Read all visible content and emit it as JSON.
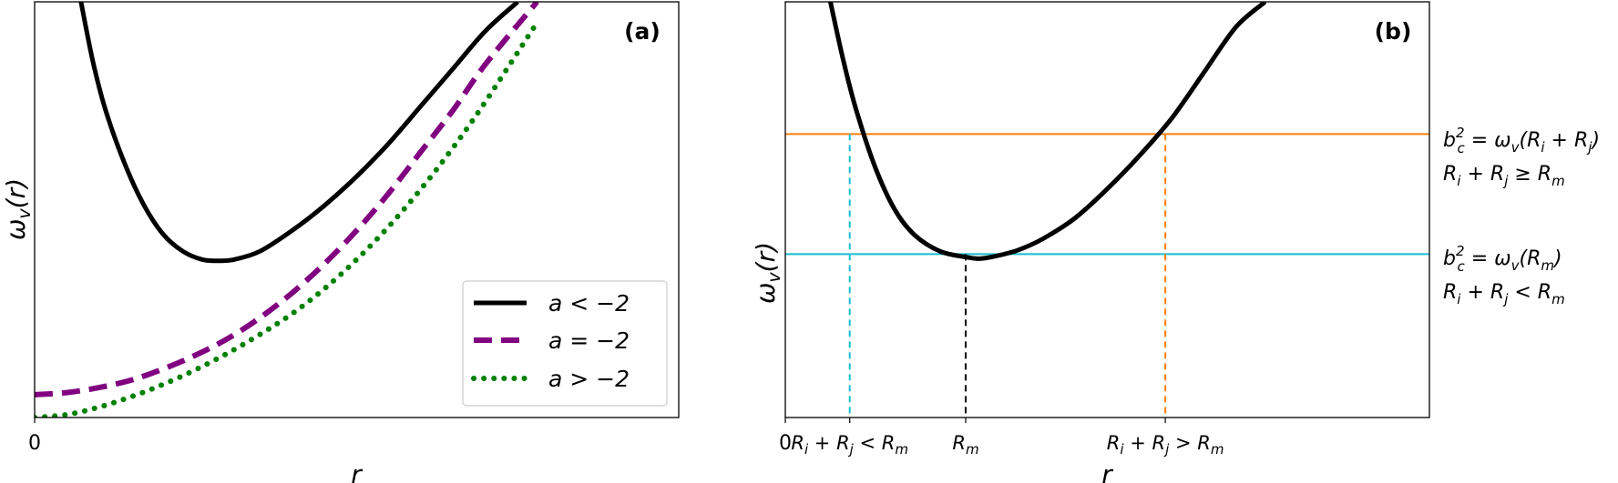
{
  "chart_data": [
    {
      "panel": "(a)",
      "type": "line",
      "xlabel": "r",
      "ylabel": "ω_v(r)",
      "x_tick_label": "0",
      "xlim": [
        0,
        1
      ],
      "ylim": [
        0,
        1
      ],
      "grid": false,
      "legend_placement": "lower-right",
      "series": [
        {
          "name": "a < −2",
          "style": "solid",
          "color": "#000000",
          "x": [
            0.072,
            0.09,
            0.11,
            0.14,
            0.17,
            0.2,
            0.23,
            0.26,
            0.285,
            0.31,
            0.35,
            0.4,
            0.45,
            0.5,
            0.55,
            0.6,
            0.65,
            0.7,
            0.75
          ],
          "y": [
            1.0,
            0.86,
            0.74,
            0.61,
            0.51,
            0.44,
            0.4,
            0.38,
            0.377,
            0.38,
            0.4,
            0.45,
            0.51,
            0.58,
            0.66,
            0.75,
            0.84,
            0.93,
            1.0
          ]
        },
        {
          "name": "a = −2",
          "style": "dashed",
          "color": "#800080",
          "x": [
            0.0,
            0.05,
            0.1,
            0.15,
            0.2,
            0.25,
            0.3,
            0.35,
            0.4,
            0.45,
            0.5,
            0.55,
            0.6,
            0.65,
            0.7,
            0.78
          ],
          "y": [
            0.055,
            0.06,
            0.072,
            0.09,
            0.117,
            0.15,
            0.19,
            0.24,
            0.3,
            0.37,
            0.45,
            0.54,
            0.64,
            0.74,
            0.85,
            1.0
          ]
        },
        {
          "name": "a > −2",
          "style": "dotted",
          "color": "#008000",
          "x": [
            0.0,
            0.05,
            0.1,
            0.15,
            0.2,
            0.25,
            0.3,
            0.35,
            0.4,
            0.45,
            0.5,
            0.55,
            0.6,
            0.65,
            0.7,
            0.78
          ],
          "y": [
            0.0,
            0.007,
            0.025,
            0.05,
            0.08,
            0.115,
            0.155,
            0.2,
            0.25,
            0.31,
            0.38,
            0.46,
            0.55,
            0.65,
            0.76,
            0.95
          ]
        }
      ]
    },
    {
      "panel": "(b)",
      "type": "line",
      "xlabel": "r",
      "ylabel": "ω_v(r)",
      "x_tick_label": "0",
      "xlim": [
        0,
        1
      ],
      "ylim": [
        0,
        1
      ],
      "grid": false,
      "series": [
        {
          "name": "",
          "style": "solid",
          "color": "#000000",
          "x": [
            0.07,
            0.09,
            0.11,
            0.14,
            0.17,
            0.2,
            0.24,
            0.28,
            0.3,
            0.32,
            0.36,
            0.4,
            0.45,
            0.5,
            0.55,
            0.6,
            0.65,
            0.7,
            0.745
          ],
          "y": [
            1.0,
            0.86,
            0.74,
            0.6,
            0.5,
            0.44,
            0.4,
            0.386,
            0.382,
            0.386,
            0.402,
            0.43,
            0.48,
            0.55,
            0.63,
            0.72,
            0.83,
            0.94,
            1.0
          ]
        }
      ],
      "hlines": [
        {
          "y": 0.682,
          "color": "#ff7f0e",
          "label_line1": "b_c^2 = ω_v(R_i + R_j)",
          "label_line2": "R_i + R_j ≥ R_m"
        },
        {
          "y": 0.393,
          "color": "#17becf",
          "label_line1": "b_c^2 = ω_v(R_m)",
          "label_line2": "R_i + R_j < R_m"
        }
      ],
      "vlines": [
        {
          "x": 0.1,
          "y_top": 0.682,
          "color": "#17becf",
          "tick_label": "R_i + R_j < R_m"
        },
        {
          "x": 0.28,
          "y_top": 0.393,
          "color": "#000000",
          "tick_label": "R_m"
        },
        {
          "x": 0.59,
          "y_top": 0.682,
          "color": "#ff7f0e",
          "tick_label": "R_i + R_j > R_m"
        }
      ]
    }
  ]
}
